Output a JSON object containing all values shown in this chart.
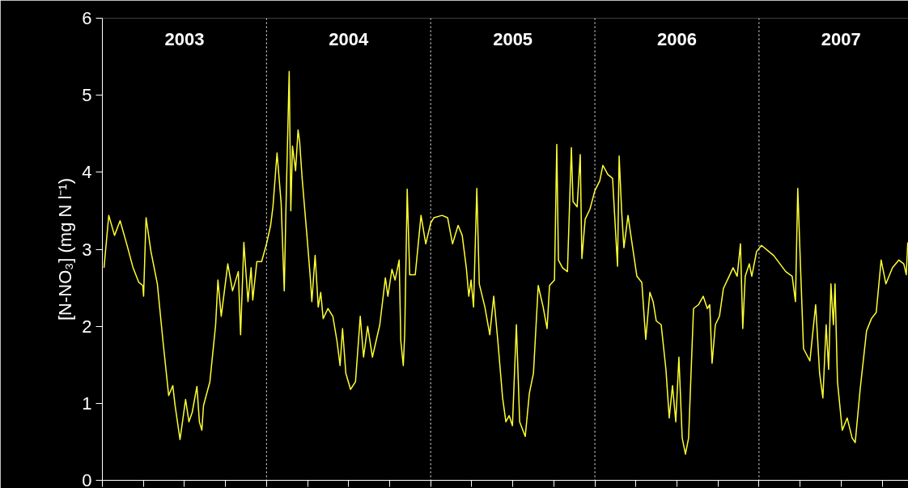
{
  "chart_data": {
    "type": "line",
    "ylabel": "[N-NO₃] (mg N l⁻¹)",
    "xlim": [
      2003,
      2007.91
    ],
    "ylim": [
      0,
      6
    ],
    "yticks": [
      0,
      1,
      2,
      3,
      4,
      5,
      6
    ],
    "xticks": [
      {
        "value": 2003,
        "label": null
      },
      {
        "value": 2003.25,
        "label": null
      },
      {
        "value": 2003.5,
        "label": "2003"
      },
      {
        "value": 2003.75,
        "label": null
      },
      {
        "value": 2004,
        "label": null
      },
      {
        "value": 2004.25,
        "label": null
      },
      {
        "value": 2004.5,
        "label": "2004"
      },
      {
        "value": 2004.75,
        "label": null
      },
      {
        "value": 2005,
        "label": null
      },
      {
        "value": 2005.25,
        "label": null
      },
      {
        "value": 2005.5,
        "label": "2005"
      },
      {
        "value": 2005.75,
        "label": null
      },
      {
        "value": 2006,
        "label": null
      },
      {
        "value": 2006.25,
        "label": null
      },
      {
        "value": 2006.5,
        "label": "2006"
      },
      {
        "value": 2006.75,
        "label": null
      },
      {
        "value": 2007,
        "label": null
      },
      {
        "value": 2007.25,
        "label": null
      },
      {
        "value": 2007.5,
        "label": "2007"
      },
      {
        "value": 2007.75,
        "label": null
      }
    ],
    "grid": false,
    "marker": "none",
    "line_style": "solid",
    "ref_lines": [
      {
        "axis": "x",
        "value": 2004,
        "color": "#ffffff",
        "line_style": "dotted"
      },
      {
        "axis": "x",
        "value": 2005,
        "color": "#ffffff",
        "line_style": "dotted"
      },
      {
        "axis": "x",
        "value": 2006,
        "color": "#ffffff",
        "line_style": "dotted"
      },
      {
        "axis": "x",
        "value": 2007,
        "color": "#ffffff",
        "line_style": "dotted"
      }
    ],
    "series": [
      {
        "color": "#ffff33",
        "x": [
          2003.01,
          2003.039,
          2003.074,
          2003.108,
          2003.148,
          2003.187,
          2003.222,
          2003.246,
          2003.251,
          2003.266,
          2003.296,
          2003.335,
          2003.369,
          2003.404,
          2003.429,
          2003.443,
          2003.473,
          2003.507,
          2003.527,
          2003.547,
          2003.576,
          2003.591,
          2003.606,
          2003.616,
          2003.655,
          2003.69,
          2003.704,
          2003.724,
          2003.764,
          2003.793,
          2003.828,
          2003.842,
          2003.862,
          2003.887,
          2003.906,
          2003.916,
          2003.941,
          2003.97,
          2004.0,
          2004.025,
          2004.039,
          2004.064,
          2004.089,
          2004.108,
          2004.118,
          2004.138,
          2004.148,
          2004.158,
          2004.177,
          2004.192,
          2004.202,
          2004.217,
          2004.246,
          2004.266,
          2004.276,
          2004.296,
          2004.315,
          2004.33,
          2004.345,
          2004.374,
          2004.404,
          2004.429,
          2004.448,
          2004.463,
          2004.483,
          2004.512,
          2004.542,
          2004.571,
          2004.591,
          2004.616,
          2004.645,
          2004.69,
          2004.724,
          2004.739,
          2004.764,
          2004.783,
          2004.808,
          2004.818,
          2004.833,
          2004.842,
          2004.857,
          2004.872,
          2004.906,
          2004.941,
          2004.97,
          2005.0,
          2005.02,
          2005.069,
          2005.103,
          2005.133,
          2005.167,
          2005.192,
          2005.217,
          2005.232,
          2005.246,
          2005.261,
          2005.281,
          2005.296,
          2005.33,
          2005.36,
          2005.384,
          2005.409,
          2005.438,
          2005.458,
          2005.478,
          2005.498,
          2005.522,
          2005.542,
          2005.576,
          2005.601,
          2005.626,
          2005.655,
          2005.685,
          2005.709,
          2005.724,
          2005.754,
          2005.768,
          2005.778,
          2005.803,
          2005.833,
          2005.857,
          2005.867,
          2005.892,
          2005.911,
          2005.921,
          2005.941,
          2005.97,
          2006.0,
          2006.03,
          2006.049,
          2006.079,
          2006.108,
          2006.138,
          2006.148,
          2006.163,
          2006.177,
          2006.202,
          2006.227,
          2006.256,
          2006.286,
          2006.31,
          2006.335,
          2006.355,
          2006.374,
          2006.404,
          2006.433,
          2006.453,
          2006.473,
          2006.493,
          2006.512,
          2006.532,
          2006.552,
          2006.571,
          2006.601,
          2006.631,
          2006.66,
          2006.685,
          2006.7,
          2006.714,
          2006.734,
          2006.759,
          2006.783,
          2006.818,
          2006.842,
          2006.867,
          2006.887,
          2006.901,
          2006.916,
          2006.941,
          2006.956,
          2006.985,
          2007.015,
          2007.089,
          2007.163,
          2007.202,
          2007.222,
          2007.236,
          2007.251,
          2007.271,
          2007.31,
          2007.345,
          2007.369,
          2007.389,
          2007.409,
          2007.424,
          2007.438,
          2007.453,
          2007.463,
          2007.478,
          2007.507,
          2007.537,
          2007.567,
          2007.586,
          2007.616,
          2007.655,
          2007.685,
          2007.714,
          2007.744,
          2007.773,
          2007.813,
          2007.852,
          2007.882,
          2007.897,
          2007.906
        ],
        "values": [
          2.76,
          3.44,
          3.18,
          3.37,
          3.07,
          2.76,
          2.57,
          2.53,
          2.39,
          3.41,
          2.97,
          2.55,
          1.81,
          1.1,
          1.23,
          0.97,
          0.53,
          1.05,
          0.76,
          0.88,
          1.22,
          0.76,
          0.65,
          0.97,
          1.28,
          2.02,
          2.6,
          2.13,
          2.81,
          2.46,
          2.71,
          1.89,
          3.09,
          2.32,
          2.76,
          2.34,
          2.84,
          2.84,
          3.07,
          3.31,
          3.55,
          4.25,
          3.6,
          2.46,
          3.5,
          5.31,
          3.5,
          4.34,
          4.02,
          4.55,
          4.39,
          3.92,
          3.18,
          2.65,
          2.32,
          2.92,
          2.25,
          2.44,
          2.1,
          2.23,
          2.13,
          1.81,
          1.49,
          1.97,
          1.39,
          1.18,
          1.28,
          2.13,
          1.6,
          2.0,
          1.6,
          2.02,
          2.63,
          2.39,
          2.74,
          2.6,
          2.86,
          1.81,
          1.49,
          1.92,
          3.78,
          2.67,
          2.67,
          3.44,
          3.07,
          3.34,
          3.41,
          3.44,
          3.41,
          3.07,
          3.31,
          3.18,
          2.76,
          2.39,
          2.6,
          2.25,
          3.79,
          2.55,
          2.25,
          1.89,
          2.39,
          1.81,
          1.07,
          0.76,
          0.84,
          0.71,
          2.02,
          0.76,
          0.57,
          1.13,
          1.39,
          2.53,
          2.25,
          1.97,
          2.53,
          2.6,
          4.36,
          2.86,
          2.76,
          2.71,
          4.32,
          3.62,
          3.55,
          4.23,
          2.88,
          3.39,
          3.52,
          3.76,
          3.89,
          4.09,
          3.97,
          3.92,
          2.78,
          4.21,
          3.5,
          3.02,
          3.44,
          3.07,
          2.65,
          2.57,
          1.83,
          2.44,
          2.32,
          2.07,
          2.02,
          1.44,
          0.81,
          1.23,
          0.76,
          1.6,
          0.55,
          0.34,
          0.55,
          2.23,
          2.28,
          2.39,
          2.23,
          2.28,
          1.52,
          2.02,
          2.13,
          2.49,
          2.65,
          2.76,
          2.65,
          3.07,
          1.97,
          2.65,
          2.81,
          2.65,
          2.97,
          3.05,
          2.92,
          2.71,
          2.65,
          2.32,
          3.79,
          2.88,
          1.71,
          1.55,
          2.28,
          1.39,
          1.07,
          2.02,
          1.44,
          2.55,
          2.02,
          2.55,
          1.28,
          0.65,
          0.81,
          0.55,
          0.49,
          1.18,
          1.94,
          2.1,
          2.18,
          2.86,
          2.55,
          2.76,
          2.86,
          2.81,
          2.67,
          3.09
        ]
      }
    ]
  }
}
